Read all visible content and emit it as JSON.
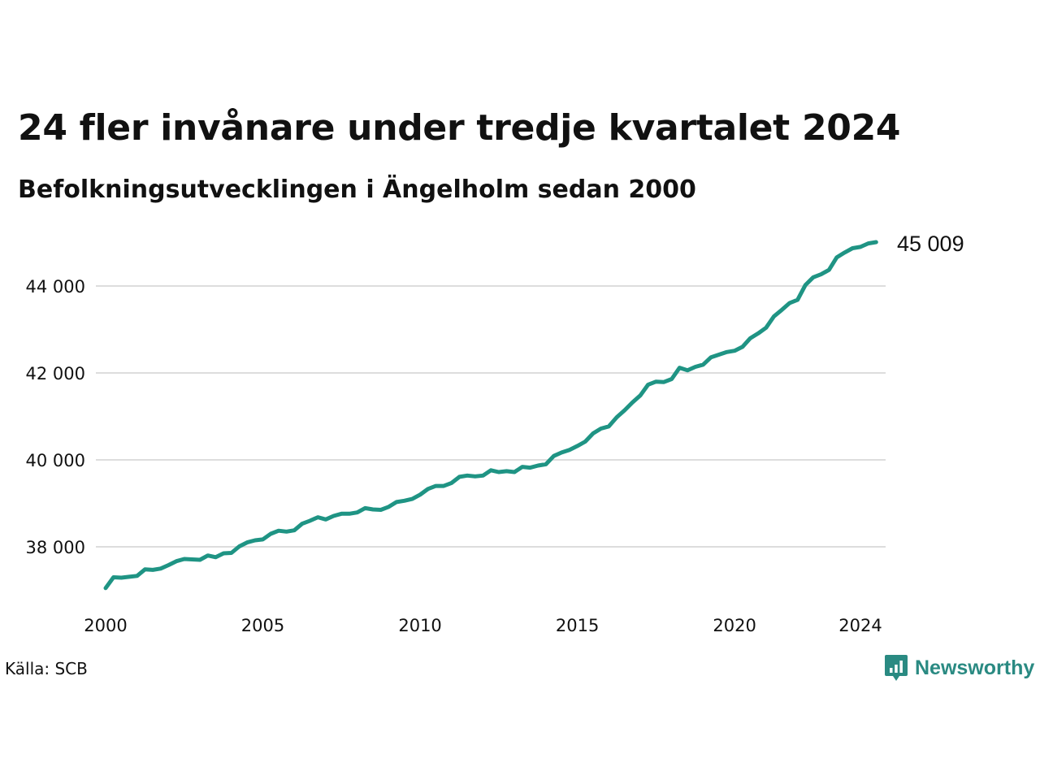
{
  "colors": {
    "line": "#1f9484",
    "grid": "#dddddd",
    "text": "#111111",
    "brand": "#2a8a82"
  },
  "source": "Källa: SCB",
  "brand": {
    "name": "Newsworthy",
    "icon": "newsworthy-logo-icon"
  },
  "chart_data": {
    "type": "line",
    "title": "24 fler invånare under tredje kvartalet 2024",
    "subtitle": "Befolkningsutvecklingen i Ängelholm sedan 2000",
    "xlabel": "",
    "ylabel": "",
    "x_ticks": [
      "2000",
      "2005",
      "2010",
      "2015",
      "2020",
      "2024"
    ],
    "y_ticks": [
      "38 000",
      "40 000",
      "42 000",
      "44 000"
    ],
    "ylim": [
      37000,
      45200
    ],
    "xlim": [
      2000,
      2024.75
    ],
    "grid": "horizontal",
    "end_label": "45 009",
    "series": [
      {
        "x": [
          2000.0,
          2000.25,
          2000.5,
          2000.75,
          2001.0,
          2001.25,
          2001.5,
          2001.75,
          2002.0,
          2002.25,
          2002.5,
          2002.75,
          2003.0,
          2003.25,
          2003.5,
          2003.75,
          2004.0,
          2004.25,
          2004.5,
          2004.75,
          2005.0,
          2005.25,
          2005.5,
          2005.75,
          2006.0,
          2006.25,
          2006.5,
          2006.75,
          2007.0,
          2007.25,
          2007.5,
          2007.75,
          2008.0,
          2008.25,
          2008.5,
          2008.75,
          2009.0,
          2009.25,
          2009.5,
          2009.75,
          2010.0,
          2010.25,
          2010.5,
          2010.75,
          2011.0,
          2011.25,
          2011.5,
          2011.75,
          2012.0,
          2012.25,
          2012.5,
          2012.75,
          2013.0,
          2013.25,
          2013.5,
          2013.75,
          2014.0,
          2014.25,
          2014.5,
          2014.75,
          2015.0,
          2015.25,
          2015.5,
          2015.75,
          2016.0,
          2016.25,
          2016.5,
          2016.75,
          2017.0,
          2017.25,
          2017.5,
          2017.75,
          2018.0,
          2018.25,
          2018.5,
          2018.75,
          2019.0,
          2019.25,
          2019.5,
          2019.75,
          2020.0,
          2020.25,
          2020.5,
          2020.75,
          2021.0,
          2021.25,
          2021.5,
          2021.75,
          2022.0,
          2022.25,
          2022.5,
          2022.75,
          2023.0,
          2023.25,
          2023.5,
          2023.75,
          2024.0,
          2024.25,
          2024.5
        ],
        "values": [
          37050,
          37300,
          37290,
          37310,
          37330,
          37480,
          37470,
          37500,
          37580,
          37670,
          37720,
          37710,
          37700,
          37800,
          37760,
          37850,
          37860,
          38010,
          38100,
          38150,
          38170,
          38300,
          38370,
          38350,
          38380,
          38530,
          38600,
          38680,
          38630,
          38710,
          38760,
          38760,
          38790,
          38890,
          38860,
          38850,
          38920,
          39030,
          39060,
          39100,
          39200,
          39330,
          39400,
          39400,
          39470,
          39610,
          39640,
          39620,
          39640,
          39760,
          39720,
          39740,
          39720,
          39840,
          39820,
          39870,
          39900,
          40090,
          40170,
          40230,
          40320,
          40420,
          40610,
          40720,
          40770,
          40980,
          41140,
          41320,
          41480,
          41730,
          41800,
          41790,
          41860,
          42120,
          42060,
          42140,
          42190,
          42360,
          42420,
          42480,
          42510,
          42600,
          42800,
          42910,
          43040,
          43300,
          43450,
          43610,
          43680,
          44020,
          44200,
          44270,
          44370,
          44660,
          44770,
          44870,
          44900,
          44980,
          45009
        ]
      }
    ]
  }
}
